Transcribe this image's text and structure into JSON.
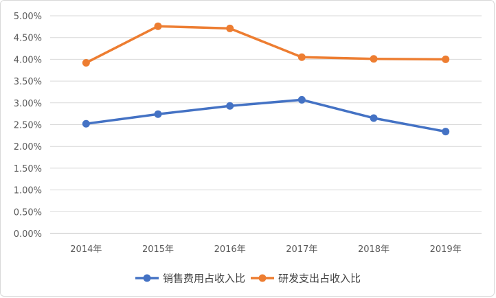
{
  "chart_data": {
    "type": "line",
    "title": "",
    "xlabel": "",
    "ylabel": "",
    "categories": [
      "2014年",
      "2015年",
      "2016年",
      "2017年",
      "2018年",
      "2019年"
    ],
    "y_ticks": [
      "0.00%",
      "0.50%",
      "1.00%",
      "1.50%",
      "2.00%",
      "2.50%",
      "3.00%",
      "3.50%",
      "4.00%",
      "4.50%",
      "5.00%"
    ],
    "ylim": [
      0,
      5
    ],
    "y_unit": "%",
    "grid": true,
    "legend_position": "bottom",
    "series": [
      {
        "name": "销售费用占收入比",
        "values": [
          2.52,
          2.74,
          2.93,
          3.07,
          2.65,
          2.34
        ],
        "color": "#4472c4"
      },
      {
        "name": "研发支出占收入比",
        "values": [
          3.92,
          4.76,
          4.71,
          4.05,
          4.01,
          4.0
        ],
        "color": "#ed7d31"
      }
    ]
  }
}
